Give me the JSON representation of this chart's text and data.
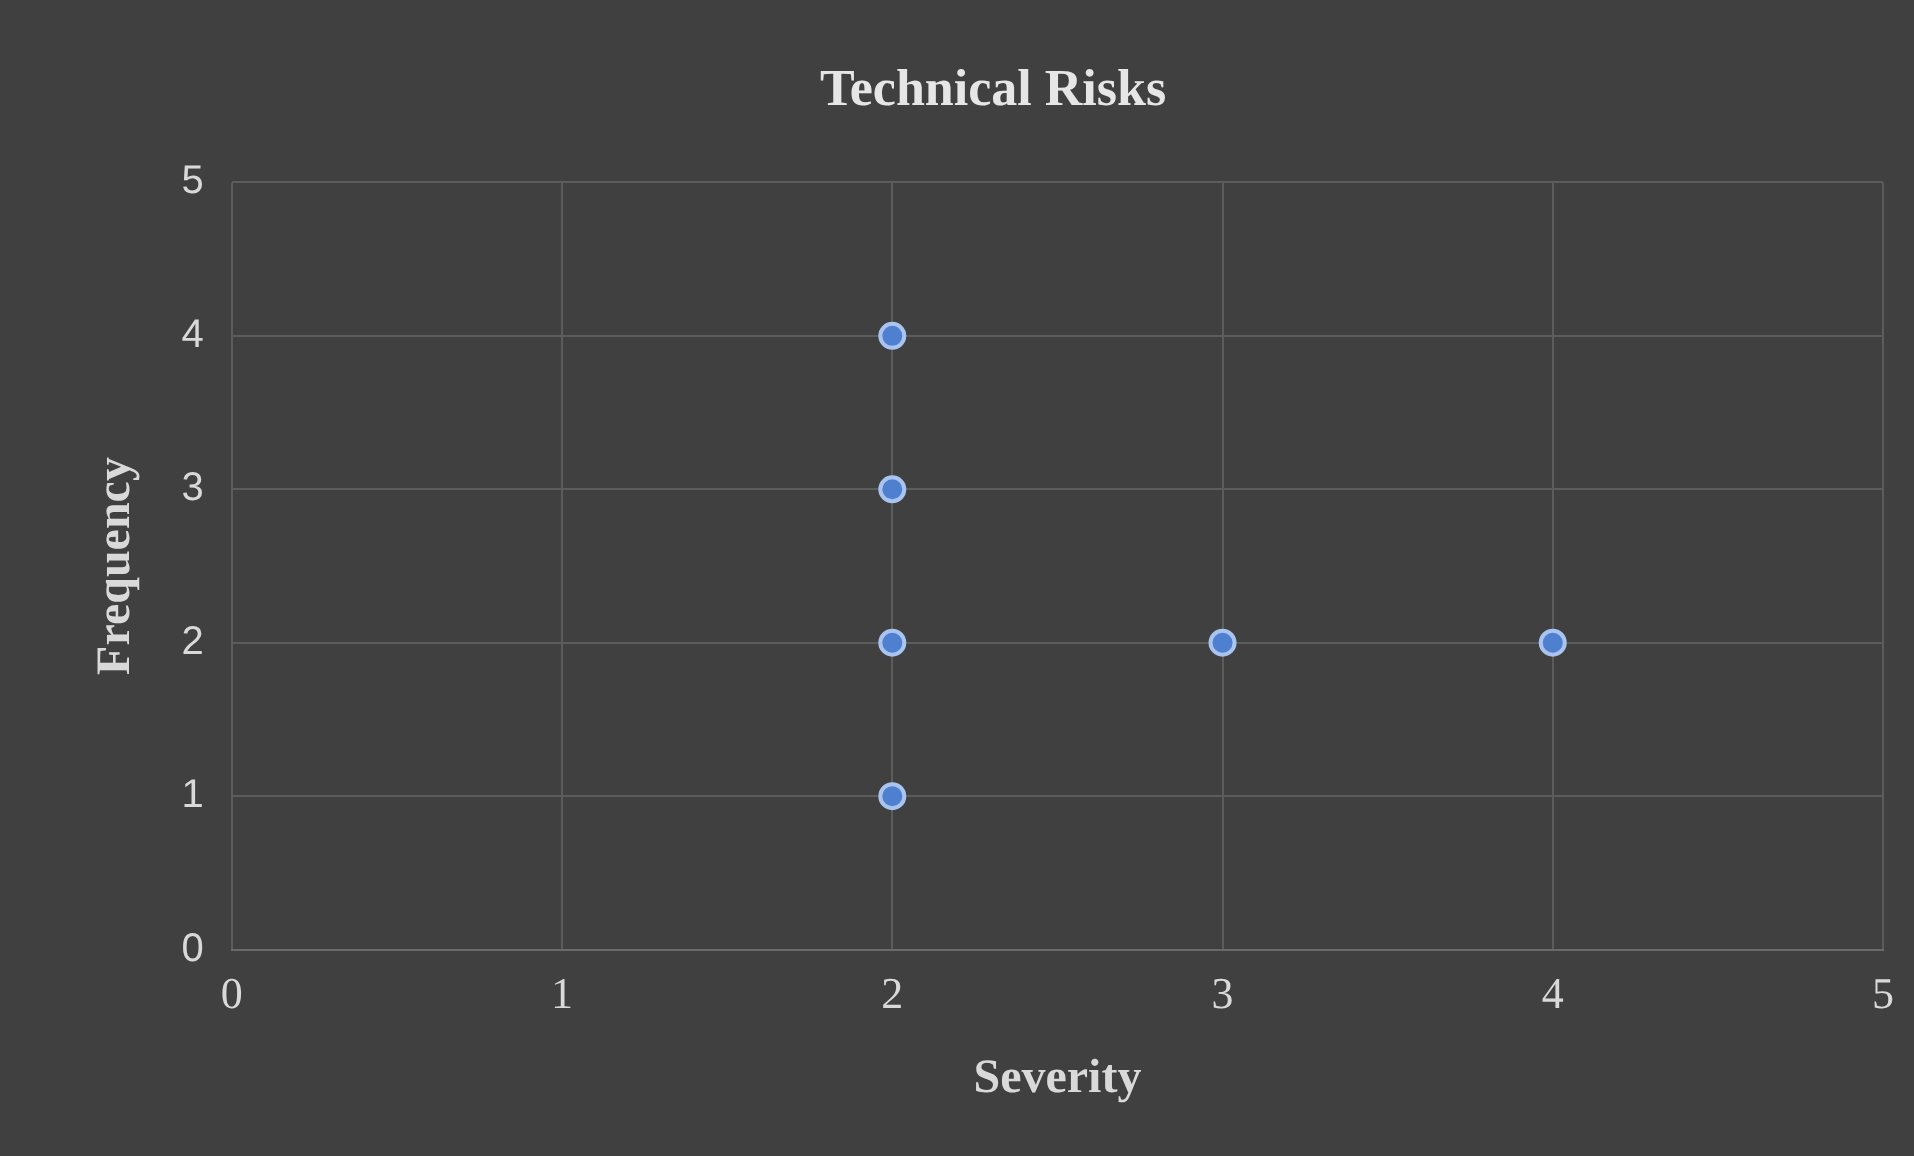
{
  "chart_data": {
    "type": "scatter",
    "title": "Technical Risks",
    "xlabel": "Severity",
    "ylabel": "Frequency",
    "x": [
      2,
      2,
      2,
      2,
      3,
      4
    ],
    "values": [
      4,
      3,
      2,
      1,
      2,
      2
    ],
    "color": "#4f7fcf",
    "marker": "circle",
    "xlim": [
      0,
      5
    ],
    "ylim": [
      0,
      5
    ],
    "xticks": [
      0,
      1,
      2,
      3,
      4,
      5
    ],
    "yticks": [
      0,
      1,
      2,
      3,
      4,
      5
    ],
    "grid": true
  }
}
